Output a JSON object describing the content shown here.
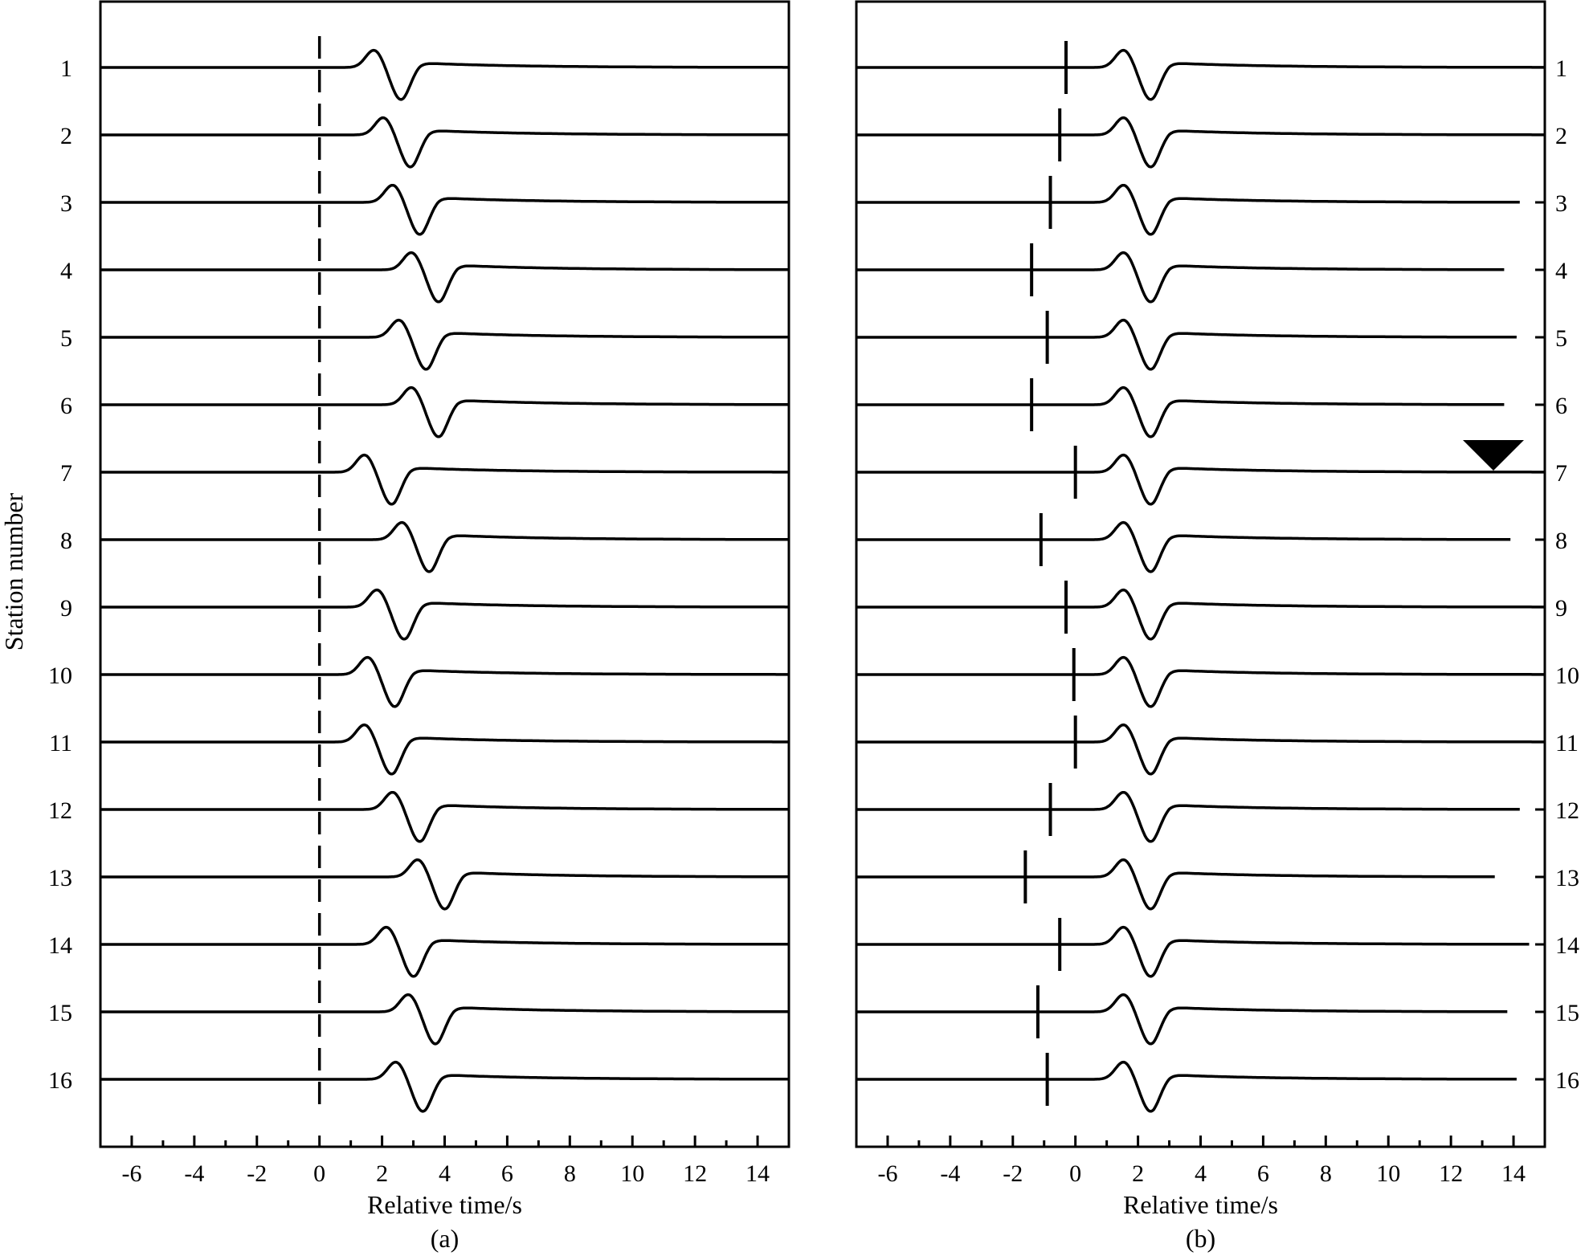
{
  "chart_data": [
    {
      "type": "line",
      "panel_label": "(a)",
      "xlabel": "Relative time/s",
      "ylabel": "Station number",
      "xlim": [
        -7,
        15
      ],
      "x_ticks": [
        -6,
        -4,
        -2,
        0,
        2,
        4,
        6,
        8,
        10,
        12,
        14
      ],
      "station_label_side": "left",
      "reference_line": {
        "x": 0,
        "style": "dashed"
      },
      "stations": [
        {
          "station": "1",
          "pulse_offset": 0.7,
          "trace_end": 15
        },
        {
          "station": "2",
          "pulse_offset": 1.0,
          "trace_end": 15
        },
        {
          "station": "3",
          "pulse_offset": 1.3,
          "trace_end": 15
        },
        {
          "station": "4",
          "pulse_offset": 1.9,
          "trace_end": 15
        },
        {
          "station": "5",
          "pulse_offset": 1.5,
          "trace_end": 15
        },
        {
          "station": "6",
          "pulse_offset": 1.9,
          "trace_end": 15
        },
        {
          "station": "7",
          "pulse_offset": 0.4,
          "trace_end": 15
        },
        {
          "station": "8",
          "pulse_offset": 1.6,
          "trace_end": 15
        },
        {
          "station": "9",
          "pulse_offset": 0.8,
          "trace_end": 15
        },
        {
          "station": "10",
          "pulse_offset": 0.5,
          "trace_end": 15
        },
        {
          "station": "11",
          "pulse_offset": 0.4,
          "trace_end": 15
        },
        {
          "station": "12",
          "pulse_offset": 1.3,
          "trace_end": 15
        },
        {
          "station": "13",
          "pulse_offset": 2.1,
          "trace_end": 15
        },
        {
          "station": "14",
          "pulse_offset": 1.1,
          "trace_end": 15
        },
        {
          "station": "15",
          "pulse_offset": 1.8,
          "trace_end": 15
        },
        {
          "station": "16",
          "pulse_offset": 1.4,
          "trace_end": 15
        }
      ]
    },
    {
      "type": "line",
      "panel_label": "(b)",
      "xlabel": "Relative time/s",
      "ylabel": "",
      "xlim": [
        -7,
        15
      ],
      "x_ticks": [
        -6,
        -4,
        -2,
        0,
        2,
        4,
        6,
        8,
        10,
        12,
        14
      ],
      "station_label_side": "right",
      "reference_station": "7",
      "stations": [
        {
          "station": "1",
          "pulse_offset": 0.5,
          "marker_x": -0.3,
          "trace_end": 15
        },
        {
          "station": "2",
          "pulse_offset": 0.5,
          "marker_x": -0.5,
          "trace_end": 15
        },
        {
          "station": "3",
          "pulse_offset": 0.5,
          "marker_x": -0.8,
          "trace_end": 14.2
        },
        {
          "station": "4",
          "pulse_offset": 0.5,
          "marker_x": -1.4,
          "trace_end": 13.7
        },
        {
          "station": "5",
          "pulse_offset": 0.5,
          "marker_x": -0.9,
          "trace_end": 14.1
        },
        {
          "station": "6",
          "pulse_offset": 0.5,
          "marker_x": -1.4,
          "trace_end": 13.7
        },
        {
          "station": "7",
          "pulse_offset": 0.5,
          "marker_x": 0.0,
          "trace_end": 15
        },
        {
          "station": "8",
          "pulse_offset": 0.5,
          "marker_x": -1.1,
          "trace_end": 13.9
        },
        {
          "station": "9",
          "pulse_offset": 0.5,
          "marker_x": -0.3,
          "trace_end": 15
        },
        {
          "station": "10",
          "pulse_offset": 0.5,
          "marker_x": -0.05,
          "trace_end": 15
        },
        {
          "station": "11",
          "pulse_offset": 0.5,
          "marker_x": 0.0,
          "trace_end": 15
        },
        {
          "station": "12",
          "pulse_offset": 0.5,
          "marker_x": -0.8,
          "trace_end": 14.2
        },
        {
          "station": "13",
          "pulse_offset": 0.5,
          "marker_x": -1.6,
          "trace_end": 13.4
        },
        {
          "station": "14",
          "pulse_offset": 0.5,
          "marker_x": -0.5,
          "trace_end": 14.5
        },
        {
          "station": "15",
          "pulse_offset": 0.5,
          "marker_x": -1.2,
          "trace_end": 13.8
        },
        {
          "station": "16",
          "pulse_offset": 0.5,
          "marker_x": -0.9,
          "trace_end": 14.1
        }
      ]
    }
  ]
}
